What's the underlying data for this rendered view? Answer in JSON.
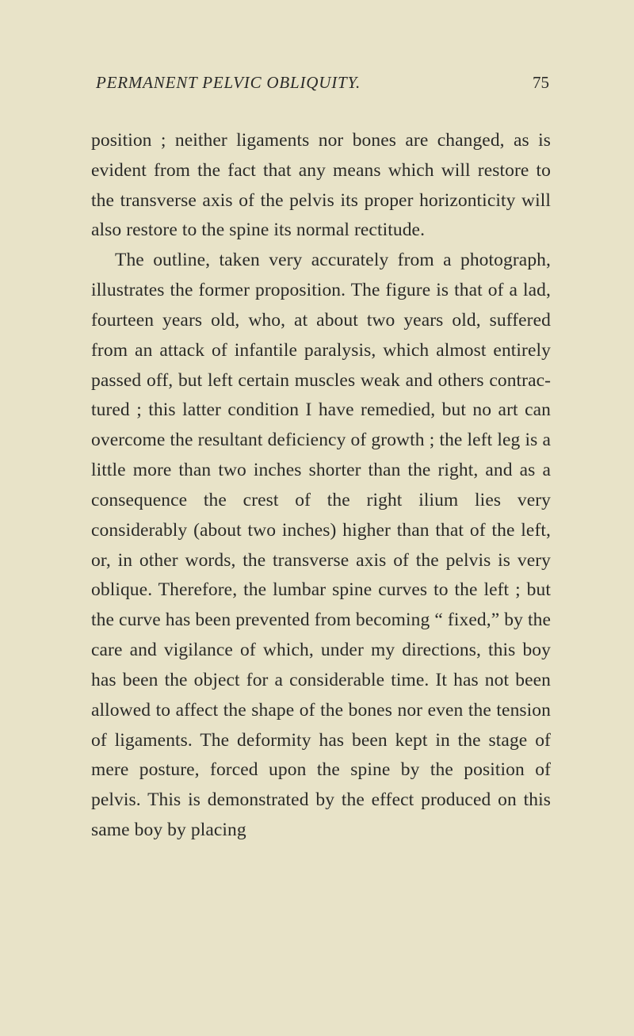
{
  "header": {
    "running_title": "PERMANENT PELVIC OBLIQUITY.",
    "page_number": "75"
  },
  "body": {
    "paragraph1": "position ; neither ligaments nor bones are changed, as is evident from the fact that any means which will restore to the transverse axis of the pelvis its proper horizonticity will also restore to the spine its normal rectitude.",
    "paragraph2": "The outline, taken very accurately from a photo­graph, illustrates the former proposition. The figure is that of a lad, fourteen years old, who, at about two years old, suffered from an attack of infantile paralysis, which almost entirely passed off, but left certain muscles weak and others contrac­tured ; this latter condition I have remedied, but no art can overcome the resultant deficiency of growth ; the left leg is a little more than two inches shorter than the right, and as a consequence the crest of the right ilium lies very considerably (about two inches) higher than that of the left, or, in other words, the transverse axis of the pelvis is very oblique. Therefore, the lumbar spine curves to the left ; but the curve has been prevented from be­coming “ fixed,” by the care and vigilance of which, under my directions, this boy has been the object for a considerable time. It has not been allowed to affect the shape of the bones nor even the tension of ligaments. The deformity has been kept in the stage of mere posture, forced upon the spine by the position of pelvis. This is demonstrated by the effect produced on this same boy by placing"
  },
  "colors": {
    "background": "#e8e3c8",
    "text": "#2a2a28"
  }
}
